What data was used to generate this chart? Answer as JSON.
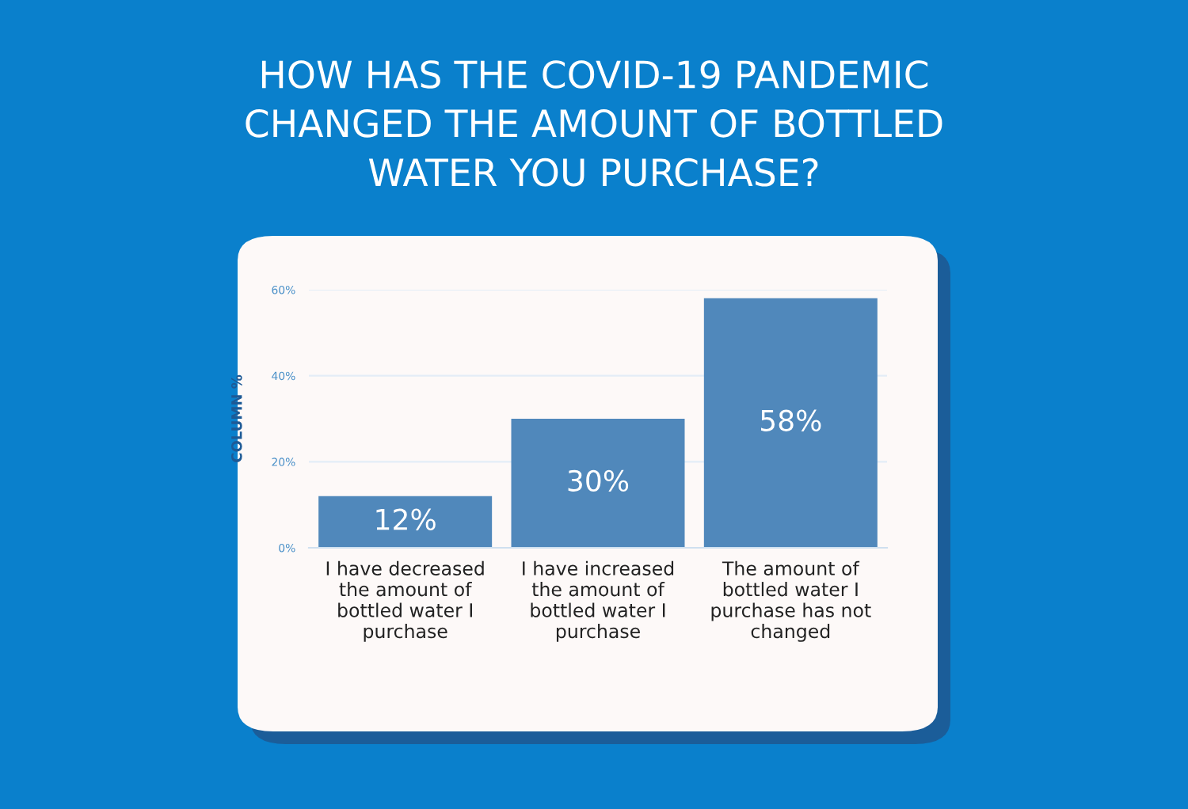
{
  "chart_data": {
    "type": "bar",
    "title": "HOW HAS THE COVID-19 PANDEMIC\nCHANGED THE AMOUNT OF BOTTLED\nWATER YOU PURCHASE?",
    "ylabel": "COLUMN %",
    "categories": [
      "I have decreased\nthe amount of\nbottled water I\npurchase",
      "I have increased\nthe amount of\nbottled water I\npurchase",
      "The amount of\nbottled water I\npurchase has not\nchanged"
    ],
    "values": [
      12,
      30,
      58
    ],
    "value_labels": [
      "12%",
      "30%",
      "58%"
    ],
    "color": "#5088bb",
    "ylim": [
      0,
      60
    ],
    "yticks": [
      {
        "value": 0,
        "label": "0%"
      },
      {
        "value": 20,
        "label": "20%"
      },
      {
        "value": 40,
        "label": "40%"
      },
      {
        "value": 60,
        "label": "60%"
      }
    ],
    "grid": "y"
  }
}
